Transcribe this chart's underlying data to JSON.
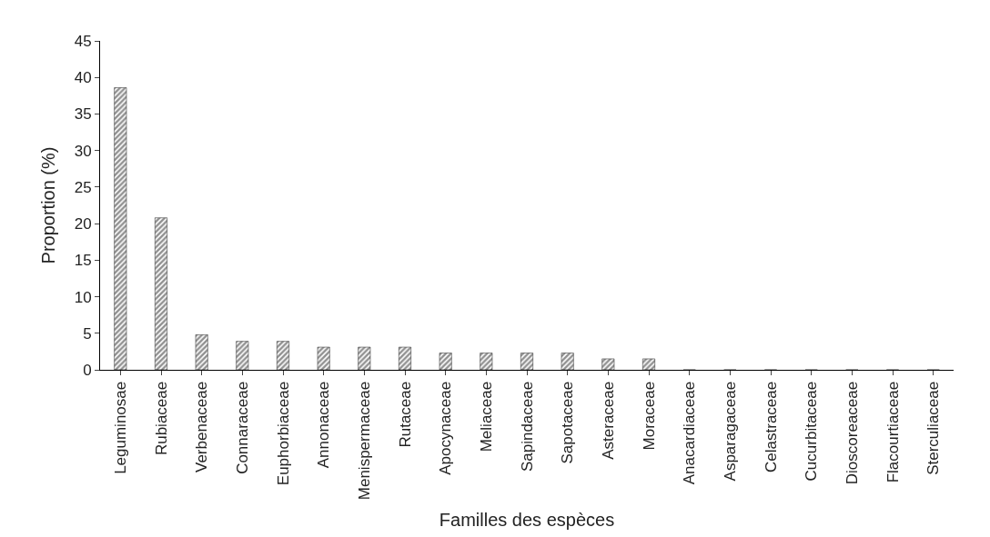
{
  "chart_data": {
    "type": "bar",
    "xlabel": "Familles des espèces",
    "ylabel": "Proportion (%)",
    "categories": [
      "Leguminosae",
      "Rubiaceae",
      "Verbenaceae",
      "Connaraceae",
      "Euphorbiaceae",
      "Annonaceae",
      "Menispermaceae",
      "Rutaceae",
      "Apocynaceae",
      "Meliaceae",
      "Sapindaceae",
      "Sapotaceae",
      "Asteraceae",
      "Moraceae",
      "Anacardiaceae",
      "Asparagaceae",
      "Celastraceae",
      "Cucurbitaceae",
      "Dioscoreaceae",
      "Flacourtiaceae",
      "Sterculiaceae"
    ],
    "values": [
      38.6,
      20.8,
      4.8,
      3.9,
      3.9,
      3.1,
      3.1,
      3.1,
      2.3,
      2.3,
      2.3,
      2.3,
      1.5,
      1.5,
      0,
      0,
      0,
      0,
      0,
      0,
      0
    ],
    "color": "#222222",
    "ylim": [
      0,
      45
    ],
    "yticks": [
      0,
      5,
      10,
      15,
      20,
      25,
      30,
      35,
      40,
      45
    ]
  }
}
